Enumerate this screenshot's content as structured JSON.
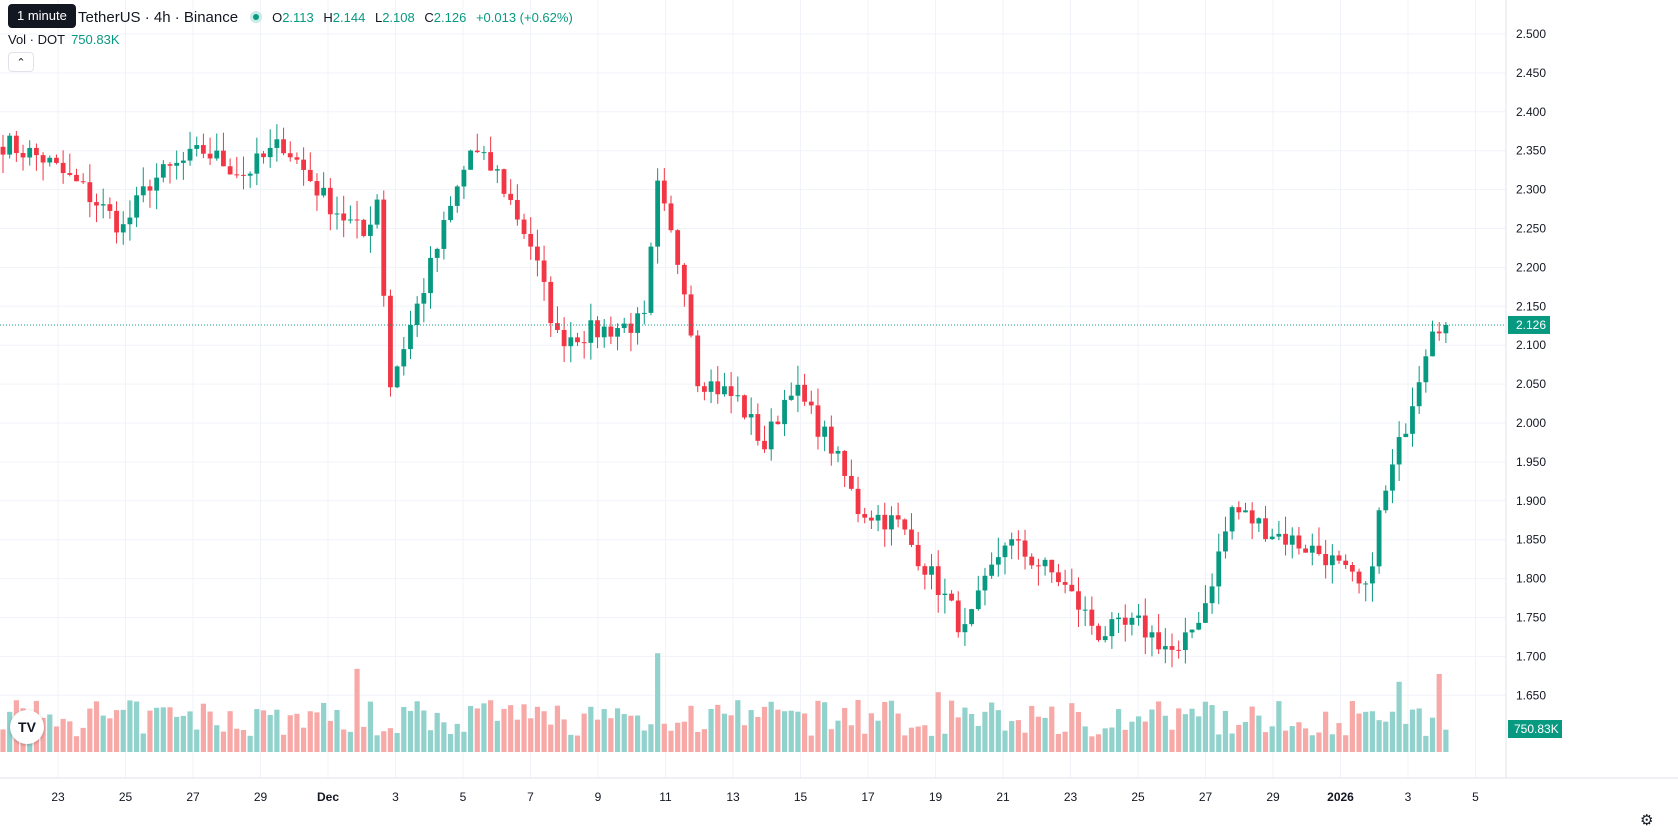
{
  "header": {
    "tooltip": "1 minute",
    "symbol": "TetherUS · 4h · Binance",
    "ohlc": [
      {
        "key": "O",
        "value": "2.113"
      },
      {
        "key": "H",
        "value": "2.144"
      },
      {
        "key": "L",
        "value": "2.108"
      },
      {
        "key": "C",
        "value": "2.126"
      }
    ],
    "change": "+0.013 (+0.62%)"
  },
  "volume_legend": {
    "label": "Vol · DOT",
    "value": "750.83K"
  },
  "price_badge": "2.126",
  "volume_badge": "750.83K",
  "icons": {
    "collapse": "chevron-up-icon",
    "logo": "tradingview-logo",
    "settings": "gear-icon"
  },
  "colors": {
    "up": "#089981",
    "down": "#f23645",
    "up_volume": "#92d2cc",
    "down_volume": "#f7a9a7"
  },
  "chart_data": {
    "type": "candlestick",
    "timeframe": "4h",
    "price_axis": {
      "ticks": [
        "2.500",
        "2.450",
        "2.400",
        "2.350",
        "2.300",
        "2.250",
        "2.200",
        "2.150",
        "2.100",
        "2.050",
        "2.000",
        "1.950",
        "1.900",
        "1.850",
        "1.800",
        "1.750",
        "1.700",
        "1.650"
      ],
      "range": [
        1.6,
        2.53
      ]
    },
    "current_price": 2.126,
    "time_axis": {
      "labels": [
        "23",
        "25",
        "27",
        "29",
        "Dec",
        "3",
        "5",
        "7",
        "9",
        "11",
        "13",
        "15",
        "17",
        "19",
        "21",
        "23",
        "25",
        "27",
        "29",
        "2026",
        "3",
        "5"
      ],
      "bold": [
        "Dec",
        "2026"
      ]
    },
    "anchors": [
      [
        0,
        2.36
      ],
      [
        6,
        2.34
      ],
      [
        12,
        2.3
      ],
      [
        18,
        2.25
      ],
      [
        22,
        2.31
      ],
      [
        30,
        2.35
      ],
      [
        36,
        2.32
      ],
      [
        42,
        2.36
      ],
      [
        48,
        2.29
      ],
      [
        54,
        2.24
      ],
      [
        56,
        2.29
      ],
      [
        58,
        2.05
      ],
      [
        64,
        2.2
      ],
      [
        70,
        2.35
      ],
      [
        74,
        2.32
      ],
      [
        79,
        2.23
      ],
      [
        83,
        2.11
      ],
      [
        90,
        2.12
      ],
      [
        96,
        2.13
      ],
      [
        98,
        2.3
      ],
      [
        102,
        2.18
      ],
      [
        104,
        2.06
      ],
      [
        110,
        2.03
      ],
      [
        114,
        1.97
      ],
      [
        118,
        2.05
      ],
      [
        124,
        1.97
      ],
      [
        128,
        1.89
      ],
      [
        134,
        1.87
      ],
      [
        140,
        1.79
      ],
      [
        144,
        1.73
      ],
      [
        150,
        1.85
      ],
      [
        158,
        1.8
      ],
      [
        164,
        1.73
      ],
      [
        170,
        1.74
      ],
      [
        176,
        1.7
      ],
      [
        180,
        1.77
      ],
      [
        184,
        1.89
      ],
      [
        190,
        1.86
      ],
      [
        198,
        1.83
      ],
      [
        204,
        1.78
      ],
      [
        206,
        1.88
      ],
      [
        210,
        2.0
      ],
      [
        214,
        2.13
      ],
      [
        216,
        2.13
      ]
    ],
    "candle_count": 217,
    "volume": {
      "spikes": [
        [
          53,
          3.2
        ],
        [
          98,
          3.8
        ],
        [
          215,
          3.0
        ],
        [
          209,
          2.7
        ],
        [
          140,
          2.3
        ],
        [
          128,
          2.0
        ]
      ]
    }
  }
}
